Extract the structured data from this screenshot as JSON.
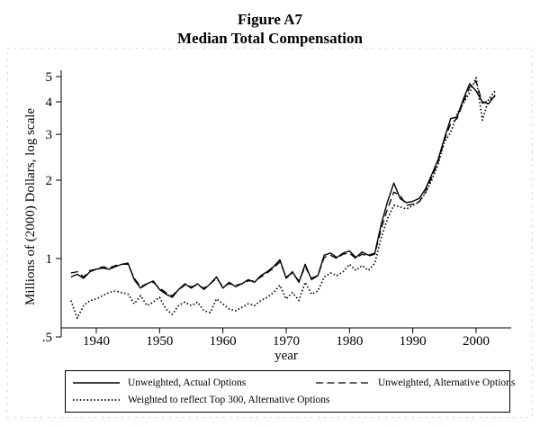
{
  "title": {
    "line1": "Figure A7",
    "line2": "Median Total Compensation"
  },
  "axes": {
    "y_label": "Millions of (2000) Dollars, log scale",
    "x_label": "year",
    "y_ticks": [
      {
        "v": 5,
        "label": "5"
      },
      {
        "v": 4,
        "label": "4"
      },
      {
        "v": 3,
        "label": "3"
      },
      {
        "v": 2,
        "label": "2"
      },
      {
        "v": 1,
        "label": "1"
      },
      {
        "v": 0.5,
        "label": ".5"
      }
    ],
    "x_ticks": [
      1940,
      1950,
      1960,
      1970,
      1980,
      1990,
      2000
    ]
  },
  "legend": {
    "item1": "Unweighted, Actual Options",
    "item2": "Unweighted, Alternative Options",
    "item3": "Weighted to reflect Top 300, Alternative Options"
  },
  "colors": {
    "line": "#000000",
    "frame_dotted": "#a8cbd6",
    "background": "#ffffff"
  },
  "chart_data": {
    "type": "line",
    "title": "Median Total Compensation",
    "xlabel": "year",
    "ylabel": "Millions of (2000) Dollars, log scale",
    "yscale": "log",
    "ylim": [
      0.5,
      5.5
    ],
    "xlim": [
      1934.5,
      2004
    ],
    "grid": false,
    "legend_position": "bottom-box",
    "x": [
      1936,
      1937,
      1938,
      1939,
      1940,
      1941,
      1942,
      1943,
      1944,
      1945,
      1946,
      1947,
      1948,
      1949,
      1950,
      1951,
      1952,
      1953,
      1954,
      1955,
      1956,
      1957,
      1958,
      1959,
      1960,
      1961,
      1962,
      1963,
      1964,
      1965,
      1966,
      1967,
      1968,
      1969,
      1970,
      1971,
      1972,
      1973,
      1974,
      1975,
      1976,
      1977,
      1978,
      1979,
      1980,
      1981,
      1982,
      1983,
      1984,
      1985,
      1986,
      1987,
      1988,
      1989,
      1990,
      1991,
      1992,
      1993,
      1994,
      1995,
      1996,
      1997,
      1998,
      1999,
      2000,
      2001,
      2002,
      2003
    ],
    "series": [
      {
        "name": "Unweighted, Actual Options",
        "style": "solid",
        "values": [
          0.85,
          0.87,
          0.84,
          0.89,
          0.91,
          0.92,
          0.91,
          0.93,
          0.95,
          0.96,
          0.83,
          0.77,
          0.8,
          0.82,
          0.76,
          0.73,
          0.71,
          0.76,
          0.8,
          0.77,
          0.8,
          0.76,
          0.8,
          0.85,
          0.77,
          0.81,
          0.78,
          0.8,
          0.83,
          0.81,
          0.86,
          0.89,
          0.93,
          0.99,
          0.84,
          0.89,
          0.81,
          0.95,
          0.83,
          0.86,
          1.03,
          1.05,
          1.01,
          1.05,
          1.07,
          1.01,
          1.06,
          1.03,
          1.05,
          1.35,
          1.65,
          1.95,
          1.7,
          1.64,
          1.66,
          1.7,
          1.85,
          2.1,
          2.4,
          2.9,
          3.45,
          3.5,
          4.1,
          4.7,
          4.4,
          4.0,
          3.93,
          4.25
        ]
      },
      {
        "name": "Unweighted, Alternative Options",
        "style": "dashed",
        "values": [
          0.88,
          0.89,
          0.85,
          0.9,
          0.91,
          0.93,
          0.92,
          0.94,
          0.95,
          0.95,
          0.84,
          0.78,
          0.8,
          0.81,
          0.77,
          0.74,
          0.72,
          0.76,
          0.79,
          0.78,
          0.79,
          0.77,
          0.8,
          0.84,
          0.78,
          0.8,
          0.79,
          0.8,
          0.82,
          0.82,
          0.85,
          0.88,
          0.92,
          0.97,
          0.85,
          0.88,
          0.82,
          0.93,
          0.84,
          0.86,
          1.01,
          1.03,
          1.0,
          1.04,
          1.05,
          1.0,
          1.04,
          1.02,
          1.04,
          1.3,
          1.55,
          1.8,
          1.75,
          1.6,
          1.62,
          1.65,
          1.8,
          2.05,
          2.35,
          2.85,
          3.3,
          3.45,
          4.0,
          4.55,
          4.8,
          3.95,
          4.05,
          4.2
        ]
      },
      {
        "name": "Weighted to reflect Top 300, Alternative Options",
        "style": "dotted",
        "values": [
          0.69,
          0.59,
          0.66,
          0.69,
          0.7,
          0.72,
          0.74,
          0.75,
          0.74,
          0.73,
          0.67,
          0.72,
          0.66,
          0.68,
          0.71,
          0.64,
          0.61,
          0.66,
          0.68,
          0.66,
          0.68,
          0.63,
          0.62,
          0.7,
          0.67,
          0.64,
          0.63,
          0.65,
          0.67,
          0.66,
          0.69,
          0.71,
          0.74,
          0.79,
          0.7,
          0.74,
          0.69,
          0.81,
          0.73,
          0.75,
          0.85,
          0.88,
          0.86,
          0.89,
          0.95,
          0.9,
          0.94,
          0.9,
          0.96,
          1.2,
          1.42,
          1.6,
          1.58,
          1.55,
          1.6,
          1.65,
          1.78,
          2.0,
          2.3,
          2.8,
          3.05,
          3.6,
          3.95,
          4.35,
          4.95,
          3.4,
          4.1,
          4.4
        ]
      }
    ]
  }
}
